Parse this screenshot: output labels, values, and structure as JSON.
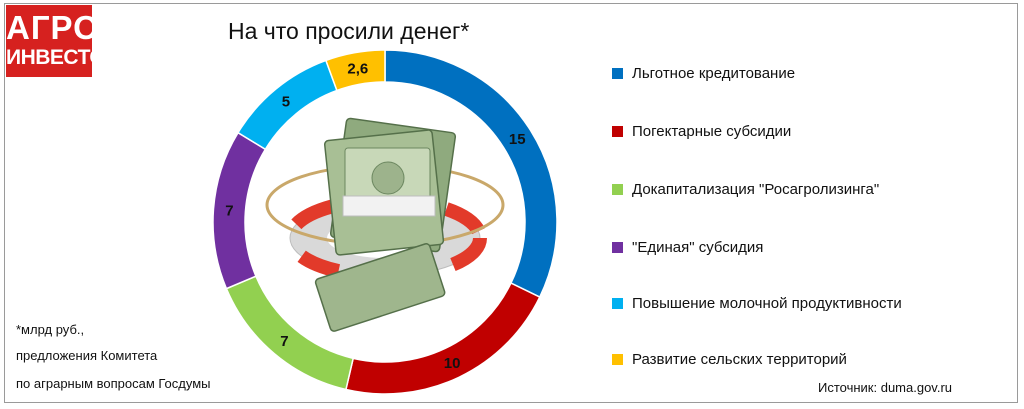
{
  "logo": {
    "line1": "АГРО",
    "line2": "ИНВЕСТОР"
  },
  "chart_data": {
    "type": "pie",
    "title": "На что просили денег*",
    "variant": "donut",
    "categories": [
      "Льготное кредитование",
      "Погектарные субсидии",
      "Докапитализация \"Росагролизинга\"",
      "\"Единая\" субсидия",
      "Повышение молочной продуктивности",
      "Развитие сельских территорий"
    ],
    "values": [
      15,
      10,
      7,
      7,
      5,
      2.6
    ],
    "value_labels": [
      "15",
      "10",
      "7",
      "7",
      "5",
      "2,6"
    ],
    "colors": [
      "#0070c0",
      "#c00000",
      "#92d050",
      "#7030a0",
      "#00b0f0",
      "#ffc000"
    ],
    "legend": "right"
  },
  "notes": {
    "line1": "*млрд руб.,",
    "line2": "предложения Комитета",
    "line3": "по аграрным вопросам Госдумы"
  },
  "source": "Источник: duma.gov.ru",
  "center_image_icon": "money-lifebuoy-icon"
}
